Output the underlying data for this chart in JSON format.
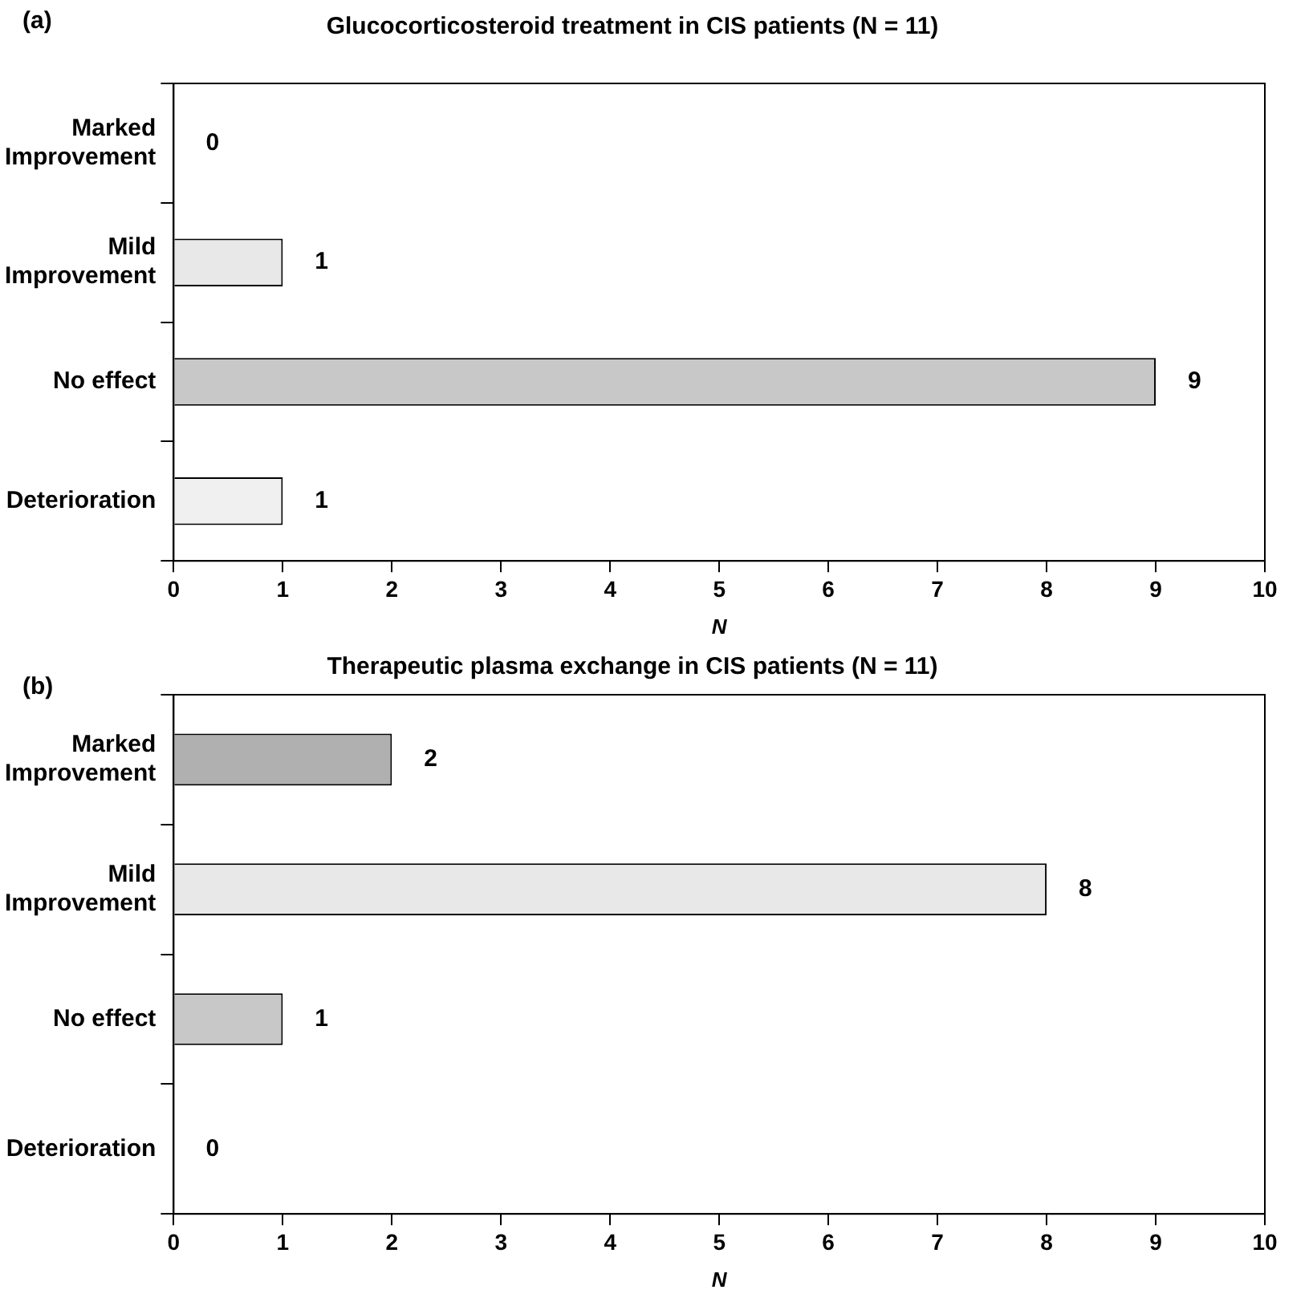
{
  "chart_data": [
    {
      "type": "bar",
      "orientation": "horizontal",
      "title": "Glucocorticosteroid treatment in CIS patients (N = 11)",
      "xlabel": "N",
      "annotations": [
        "(a)"
      ],
      "categories": [
        "Marked Improvement",
        "Mild Improvement",
        "No effect",
        "Deterioration"
      ],
      "values": [
        0,
        1,
        9,
        1
      ],
      "colors": [
        "#e0e0e0",
        "#e8e8e8",
        "#c8c8c8",
        "#f0f0f0"
      ],
      "xlim": [
        0,
        10
      ],
      "xticks": [
        0,
        1,
        2,
        3,
        4,
        5,
        6,
        7,
        8,
        9,
        10
      ],
      "grid": false,
      "data_labels": true
    },
    {
      "type": "bar",
      "orientation": "horizontal",
      "title": "Therapeutic plasma exchange in CIS patients (N = 11)",
      "xlabel": "N",
      "annotations": [
        "(b)"
      ],
      "categories": [
        "Marked Improvement",
        "Mild Improvement",
        "No effect",
        "Deterioration"
      ],
      "values": [
        2,
        8,
        1,
        0
      ],
      "colors": [
        "#b0b0b0",
        "#e8e8e8",
        "#c8c8c8",
        "#f0f0f0"
      ],
      "xlim": [
        0,
        10
      ],
      "xticks": [
        0,
        1,
        2,
        3,
        4,
        5,
        6,
        7,
        8,
        9,
        10
      ],
      "grid": false,
      "data_labels": true
    }
  ]
}
